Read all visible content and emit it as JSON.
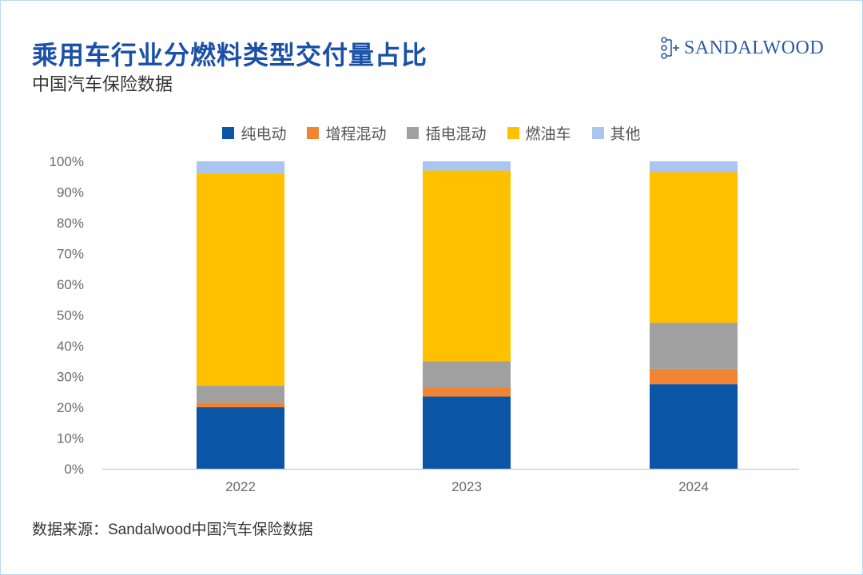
{
  "header": {
    "title": "乘用车行业分燃料类型交付量占比",
    "subtitle": "中国汽车保险数据"
  },
  "logo": {
    "text": "SANDALWOOD",
    "icon": "sandalwood-logo-mark",
    "color": "#2d5aa0"
  },
  "footer": {
    "source": "数据来源：Sandalwood中国汽车保险数据"
  },
  "chart_data": {
    "type": "bar",
    "stacked": true,
    "categories": [
      "2022",
      "2023",
      "2024"
    ],
    "series": [
      {
        "name": "纯电动",
        "color": "#0a55a6",
        "values": [
          20,
          23.5,
          27.5
        ]
      },
      {
        "name": "增程混动",
        "color": "#f08432",
        "values": [
          1.5,
          3,
          5
        ]
      },
      {
        "name": "插电混动",
        "color": "#a0a0a0",
        "values": [
          5.5,
          8.5,
          15
        ]
      },
      {
        "name": "燃油车",
        "color": "#ffc000",
        "values": [
          69,
          62,
          49
        ]
      },
      {
        "name": "其他",
        "color": "#a9c5f0",
        "values": [
          4,
          3,
          3.5
        ]
      }
    ],
    "yticks": [
      "0%",
      "10%",
      "20%",
      "30%",
      "40%",
      "50%",
      "60%",
      "70%",
      "80%",
      "90%",
      "100%"
    ],
    "ylim": [
      0,
      100
    ],
    "grid": false,
    "legend_position": "top"
  }
}
